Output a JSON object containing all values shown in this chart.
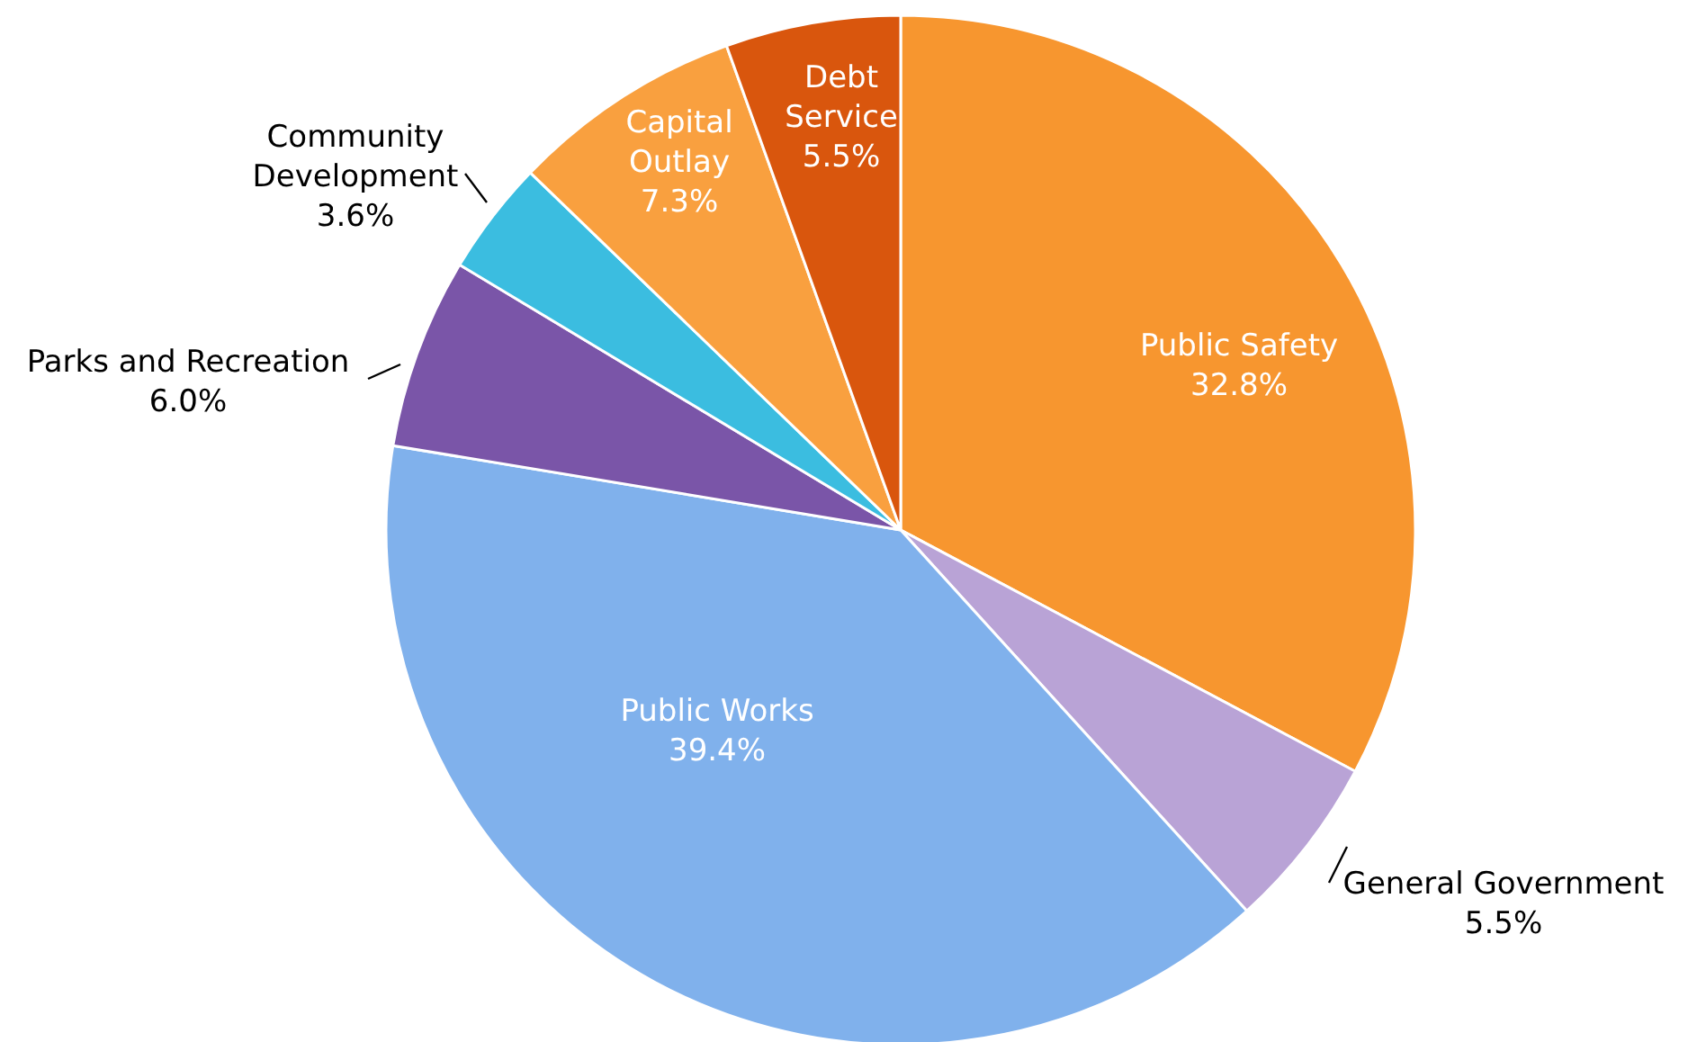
{
  "chart_data": {
    "type": "pie",
    "categories": [
      "Public Safety",
      "General Government",
      "Public Works",
      "Parks and Recreation",
      "Community Development",
      "Capital Outlay",
      "Debt Service"
    ],
    "values": [
      32.8,
      5.5,
      39.4,
      6.0,
      3.6,
      7.3,
      5.5
    ],
    "value_labels": [
      "32.8%",
      "5.5%",
      "39.4%",
      "6.0%",
      "3.6%",
      "7.3%",
      "5.5%"
    ],
    "colors": [
      "#f7962f",
      "#b9a3d6",
      "#80b1ec",
      "#7a55a8",
      "#3bbde0",
      "#f9a03f",
      "#d9560d"
    ]
  }
}
